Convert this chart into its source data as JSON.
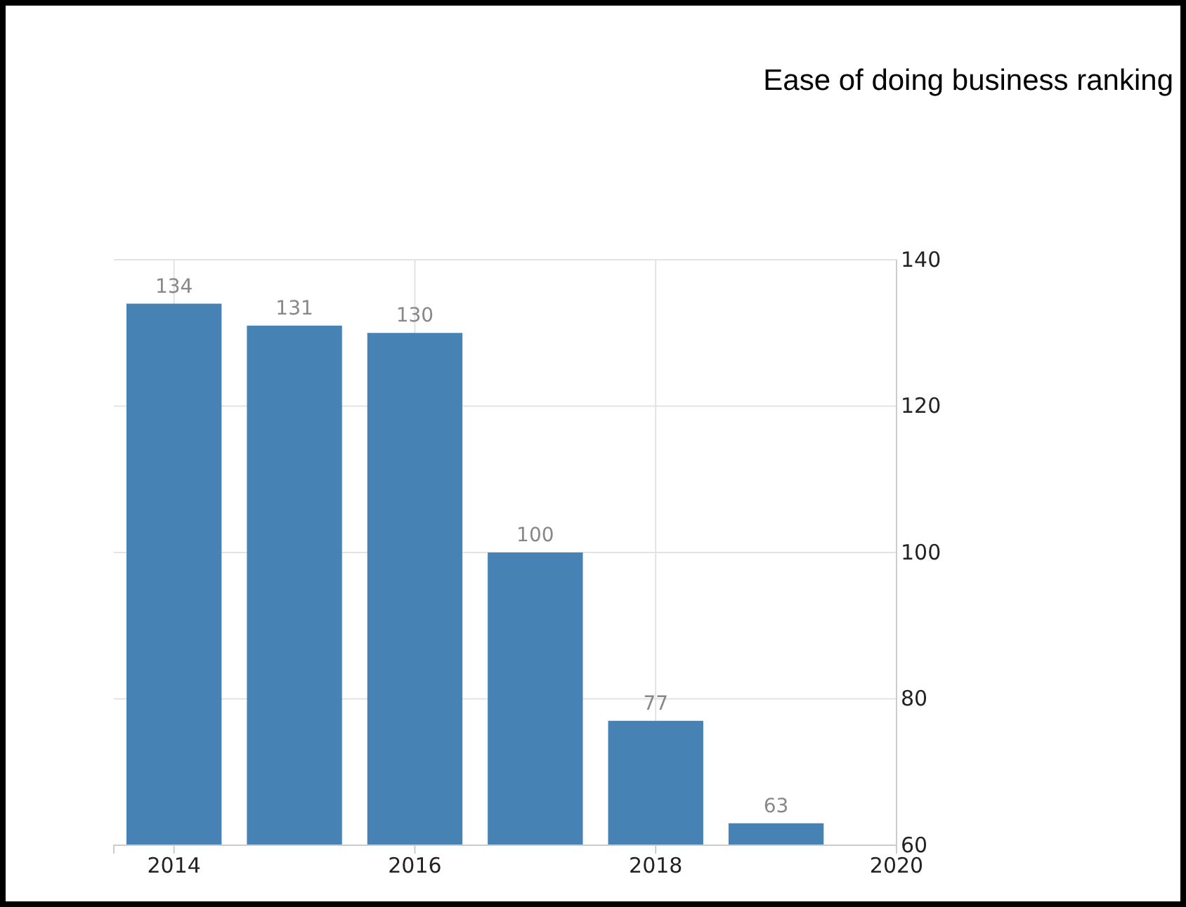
{
  "chart_data": {
    "type": "bar",
    "title": "Ease of doing business ranking",
    "x": [
      2014,
      2015,
      2016,
      2017,
      2018,
      2019
    ],
    "values": [
      134,
      131,
      130,
      100,
      77,
      63
    ],
    "color": "#4682b4",
    "xlim": [
      2013.5,
      2020
    ],
    "xticks": [
      2014,
      2016,
      2018,
      2020
    ],
    "ylim": [
      60,
      140
    ],
    "yticks": [
      60,
      80,
      100,
      120,
      140
    ],
    "grid": true,
    "data_labels": true
  }
}
